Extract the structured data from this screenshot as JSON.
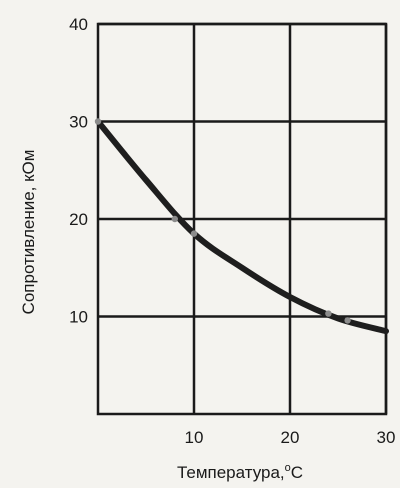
{
  "chart_data": {
    "type": "line",
    "xlabel": "Температура,",
    "xlabel_unit_sup": "о",
    "xlabel_unit": "С",
    "ylabel": "Сопротивление, кОм",
    "xlim": [
      0,
      30
    ],
    "ylim": [
      0,
      40
    ],
    "xticks": [
      10,
      20,
      30
    ],
    "yticks": [
      10,
      20,
      30,
      40
    ],
    "grid": true,
    "series": [
      {
        "x": [
          0,
          5,
          10,
          15,
          20,
          25,
          30
        ],
        "y": [
          30,
          24,
          18.5,
          15,
          12,
          9.8,
          8.5
        ],
        "color": "#1e1e1e"
      }
    ],
    "markers": [
      {
        "x": 0,
        "y": 30
      },
      {
        "x": 8,
        "y": 20
      },
      {
        "x": 10,
        "y": 18.5
      },
      {
        "x": 24,
        "y": 10.3
      },
      {
        "x": 26,
        "y": 9.6
      }
    ]
  }
}
